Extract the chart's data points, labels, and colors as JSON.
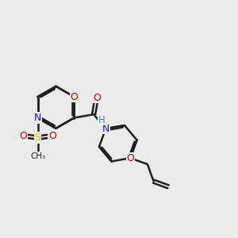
{
  "bg_color": "#ebebeb",
  "bond_color": "#202020",
  "bond_width": 1.8,
  "atom_colors": {
    "O": "#cc0000",
    "N": "#1414cc",
    "S": "#cccc00",
    "H": "#4a9090",
    "C": "#202020"
  },
  "dbo": 0.07
}
